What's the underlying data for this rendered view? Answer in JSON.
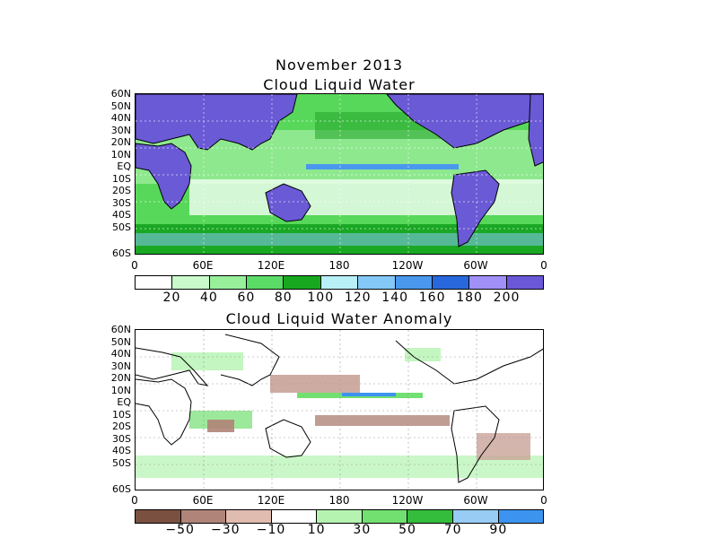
{
  "date_title": "November 2013",
  "map1": {
    "title": "Cloud Liquid Water",
    "lat_labels": [
      "60N",
      "50N",
      "40N",
      "30N",
      "20N",
      "10N",
      "EQ",
      "10S",
      "20S",
      "30S",
      "40S",
      "50S",
      "60S"
    ],
    "lon_labels": [
      "0",
      "60E",
      "120E",
      "180",
      "120W",
      "60W",
      "0"
    ],
    "colorbar": {
      "colors": [
        "#ffffff",
        "#c8facc",
        "#98f09a",
        "#5adc66",
        "#18a820",
        "#b8f0f8",
        "#84c8f8",
        "#4a98ee",
        "#2868dc",
        "#a090f8",
        "#6a58d8"
      ],
      "labels": [
        "20",
        "40",
        "60",
        "80",
        "100",
        "120",
        "140",
        "160",
        "180",
        "200"
      ]
    },
    "land_color": "#6a5ad6"
  },
  "map2": {
    "title": "Cloud Liquid Water Anomaly",
    "lat_labels": [
      "60N",
      "50N",
      "40N",
      "30N",
      "20N",
      "10N",
      "EQ",
      "10S",
      "20S",
      "30S",
      "40S",
      "50S",
      "60S"
    ],
    "lon_labels": [
      "0",
      "60E",
      "120E",
      "180",
      "120W",
      "60W",
      "0"
    ],
    "colorbar": {
      "colors": [
        "#7a5040",
        "#b08478",
        "#e0bcb0",
        "#ffffff",
        "#b4f4b0",
        "#72e070",
        "#34bc3c",
        "#98ccf4",
        "#3c94f0"
      ],
      "labels": [
        "−50",
        "−30",
        "−10",
        "10",
        "30",
        "50",
        "70",
        "90"
      ]
    }
  }
}
